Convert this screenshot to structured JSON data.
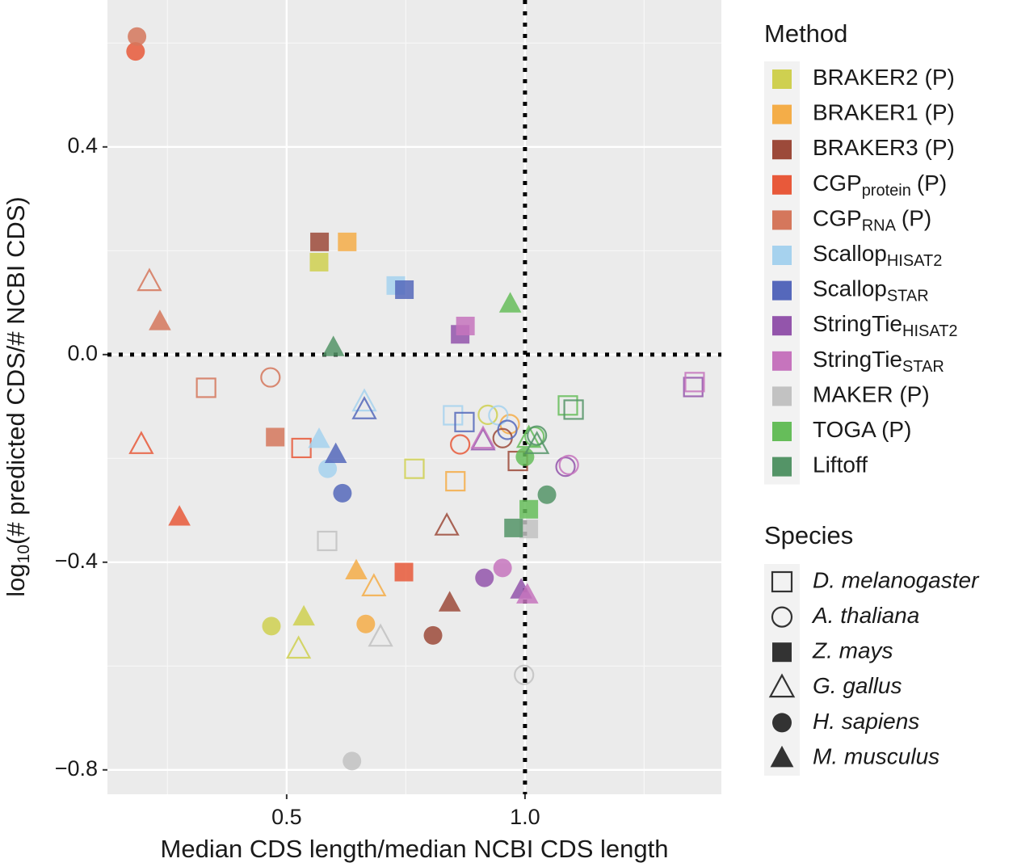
{
  "chart_data": {
    "type": "scatter",
    "x_label": "Median CDS length/median NCBI CDS length",
    "y_label": {
      "text": "log",
      "sub": "10",
      "suffix": "(# predicted CDS/# NCBI CDS)"
    },
    "xlim": [
      0.124,
      1.412
    ],
    "ylim": [
      -0.847,
      0.683
    ],
    "xticks": [
      0.5,
      {
        "value": 1,
        "label": "1.0"
      }
    ],
    "yticks": [
      0.4,
      {
        "value": 0,
        "label": "0.0"
      },
      {
        "value": -0.4,
        "label": "−0.4"
      },
      {
        "value": -0.8,
        "label": "−0.8"
      }
    ],
    "xminor": [
      0.25,
      0.75,
      1.25
    ],
    "yminor": [
      0.6,
      0.2,
      -0.2,
      -0.6
    ],
    "grid": true,
    "hline": 0,
    "vline": 1,
    "legend_title": "Method",
    "species_title": "Species",
    "species": [
      {
        "name": "D. melanogaster",
        "shape": "open-square"
      },
      {
        "name": "A. thaliana",
        "shape": "open-circle"
      },
      {
        "name": "Z. mays",
        "shape": "square"
      },
      {
        "name": "G. gallus",
        "shape": "open-triangle"
      },
      {
        "name": "H. sapiens",
        "shape": "circle"
      },
      {
        "name": "M. musculus",
        "shape": "triangle"
      }
    ],
    "series": [
      {
        "name": "BRAKER2 (P)",
        "color": "#cfd050",
        "x": [
          0.568,
          0.922,
          0.768,
          0.468,
          0.536,
          0.525
        ],
        "values": [
          0.178,
          -0.116,
          -0.22,
          -0.523,
          -0.505,
          -0.567
        ],
        "species": [
          "Z. mays",
          "A. thaliana",
          "D. melanogaster",
          "H. sapiens",
          "M. musculus",
          "G. gallus"
        ]
      },
      {
        "name": "BRAKER1 (P)",
        "color": "#f4ad48",
        "x": [
          0.627,
          0.968,
          0.854,
          0.646,
          0.683,
          0.666
        ],
        "values": [
          0.217,
          -0.134,
          -0.244,
          -0.416,
          -0.447,
          -0.519
        ],
        "species": [
          "Z. mays",
          "A. thaliana",
          "D. melanogaster",
          "M. musculus",
          "G. gallus",
          "H. sapiens"
        ]
      },
      {
        "name": "BRAKER3 (P)",
        "color": "#9c4a3a",
        "x": [
          0.569,
          0.953,
          0.985,
          0.836,
          0.842,
          0.807
        ],
        "values": [
          0.217,
          -0.161,
          -0.205,
          -0.33,
          -0.478,
          -0.541
        ],
        "species": [
          "Z. mays",
          "A. thaliana",
          "D. melanogaster",
          "G. gallus",
          "M. musculus",
          "H. sapiens"
        ]
      },
      {
        "name": "CGP",
        "name_sub": "protein",
        "name_suffix": "(P)",
        "color": "#e8593a",
        "x": [
          0.183,
          0.864,
          0.275,
          0.746,
          0.531,
          0.195
        ],
        "values": [
          0.584,
          -0.173,
          -0.3125,
          -0.419,
          -0.18,
          -0.173
        ],
        "species": [
          "H. sapiens",
          "A. thaliana",
          "M. musculus",
          "Z. mays",
          "D. melanogaster",
          "G. gallus"
        ]
      },
      {
        "name": "CGP",
        "name_sub": "RNA",
        "name_suffix": "(P)",
        "color": "#d5775c",
        "x": [
          0.186,
          0.212,
          0.234,
          0.331,
          0.466,
          0.476
        ],
        "values": [
          0.6125,
          0.141,
          0.064,
          -0.064,
          -0.044,
          -0.159
        ],
        "species": [
          "H. sapiens",
          "G. gallus",
          "M. musculus",
          "D. melanogaster",
          "A. thaliana",
          "Z. mays"
        ]
      },
      {
        "name": "Scallop",
        "name_sub": "HISAT2",
        "color": "#a6d2ee",
        "x": [
          0.729,
          0.663,
          0.849,
          0.944,
          0.568,
          0.586
        ],
        "values": [
          0.133,
          -0.091,
          -0.117,
          -0.117,
          -0.163,
          -0.22
        ],
        "species": [
          "Z. mays",
          "G. gallus",
          "D. melanogaster",
          "A. thaliana",
          "M. musculus",
          "H. sapiens"
        ]
      },
      {
        "name": "Scallop",
        "name_sub": "STAR",
        "color": "#5568bb",
        "x": [
          0.747,
          0.663,
          0.873,
          0.963,
          0.603,
          0.617
        ],
        "values": [
          0.125,
          -0.106,
          -0.13,
          -0.145,
          -0.192,
          -0.267
        ],
        "species": [
          "Z. mays",
          "G. gallus",
          "D. melanogaster",
          "A. thaliana",
          "M. musculus",
          "H. sapiens"
        ]
      },
      {
        "name": "StringTie",
        "name_sub": "HISAT2",
        "color": "#9355ab",
        "x": [
          0.864,
          0.912,
          1.085,
          1.353,
          0.915,
          0.992
        ],
        "values": [
          0.039,
          -0.166,
          -0.216,
          -0.0625,
          -0.43,
          -0.453
        ],
        "species": [
          "Z. mays",
          "G. gallus",
          "A. thaliana",
          "D. melanogaster",
          "H. sapiens",
          "M. musculus"
        ]
      },
      {
        "name": "StringTie",
        "name_sub": "STAR",
        "color": "#c674bd",
        "x": [
          0.875,
          0.912,
          1.092,
          1.356,
          0.953,
          1.005
        ],
        "values": [
          0.055,
          -0.1625,
          -0.2125,
          -0.053,
          -0.411,
          -0.4625
        ],
        "species": [
          "Z. mays",
          "G. gallus",
          "A. thaliana",
          "D. melanogaster",
          "H. sapiens",
          "M. musculus"
        ]
      },
      {
        "name": "MAKER (P)",
        "color": "#c2c2c2",
        "x": [
          0.585,
          1.008,
          0.697,
          0.998,
          0.637
        ],
        "values": [
          -0.359,
          -0.336,
          -0.544,
          -0.617,
          -0.783
        ],
        "species": [
          "D. melanogaster",
          "Z. mays",
          "G. gallus",
          "A. thaliana",
          "H. sapiens"
        ]
      },
      {
        "name": "TOGA (P)",
        "color": "#66bd5a",
        "x": [
          0.969,
          1.008,
          1.09,
          1.02,
          1.0,
          1.008
        ],
        "values": [
          0.098,
          -0.161,
          -0.098,
          -0.158,
          -0.197,
          -0.298
        ],
        "species": [
          "M. musculus",
          "G. gallus",
          "D. melanogaster",
          "A. thaliana",
          "H. sapiens",
          "Z. mays"
        ]
      },
      {
        "name": "Liftoff",
        "color": "#549467",
        "x": [
          0.598,
          1.102,
          1.025,
          1.025,
          1.046,
          0.976
        ],
        "values": [
          0.014,
          -0.106,
          -0.156,
          -0.173,
          -0.27,
          -0.334
        ],
        "species": [
          "M. musculus",
          "D. melanogaster",
          "A. thaliana",
          "G. gallus",
          "H. sapiens",
          "Z. mays"
        ]
      }
    ]
  }
}
